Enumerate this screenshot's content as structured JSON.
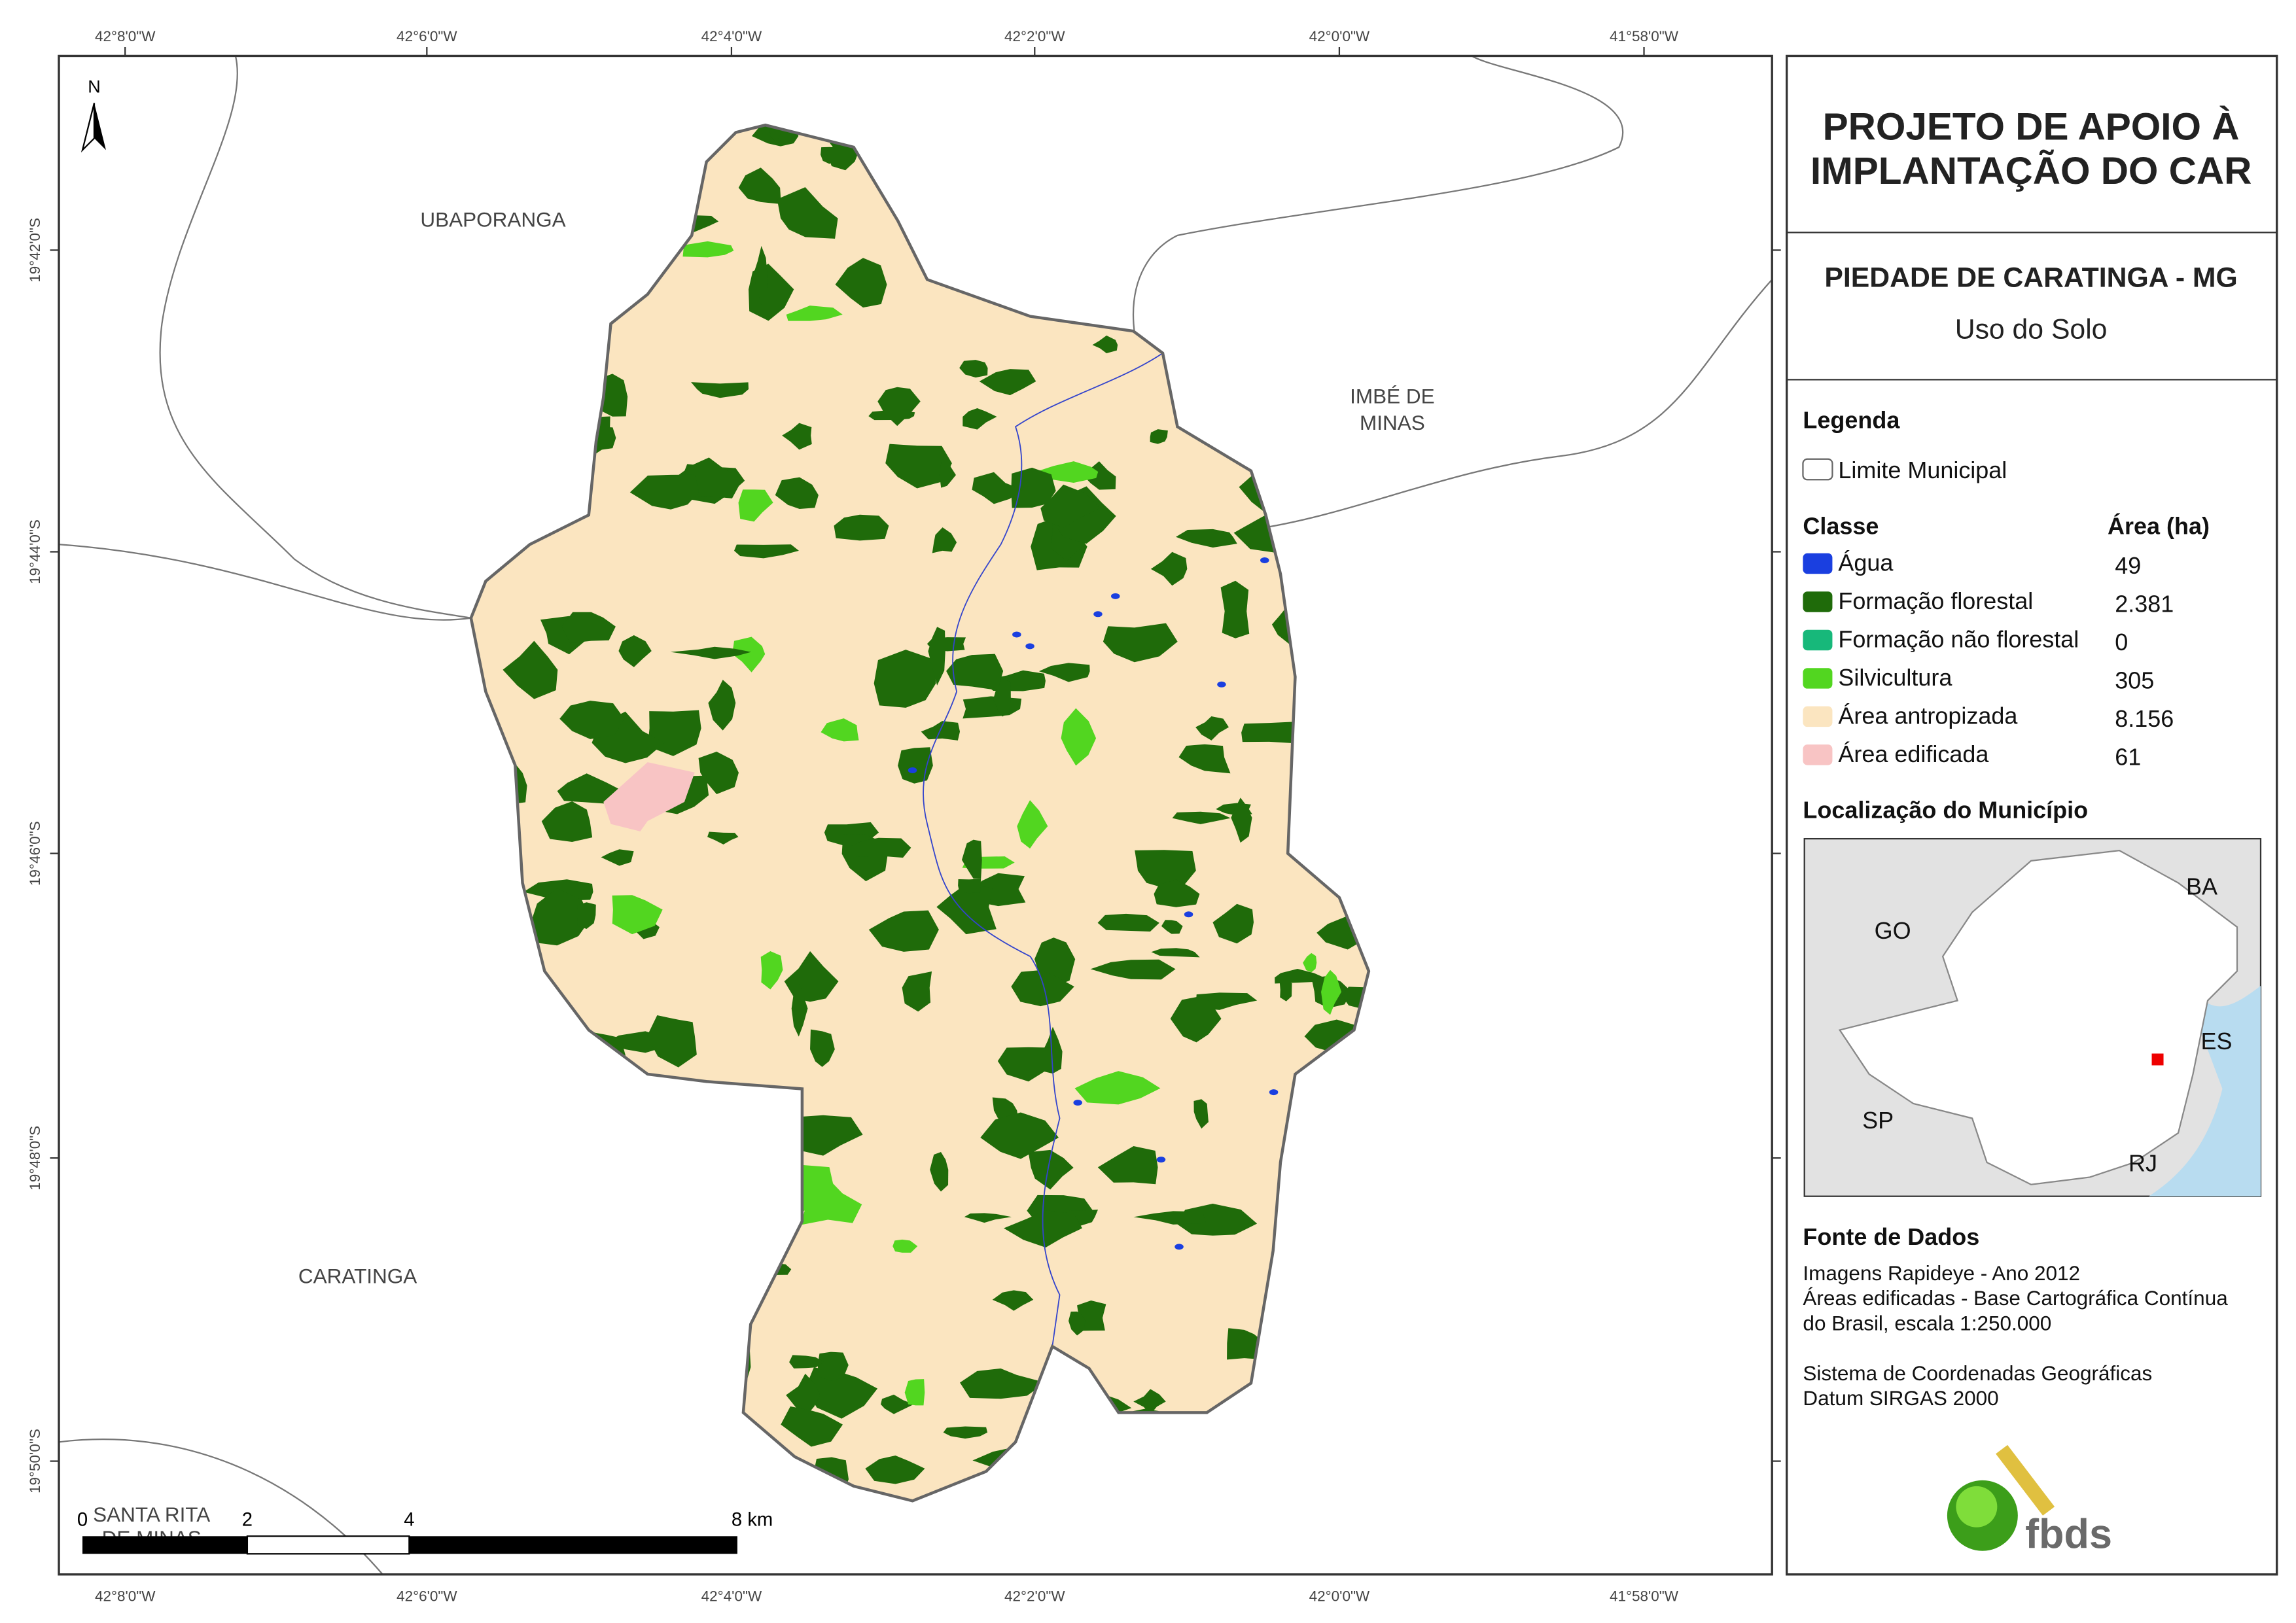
{
  "longitudes": [
    "42°8'0\"W",
    "42°6'0\"W",
    "42°4'0\"W",
    "42°2'0\"W",
    "42°0'0\"W",
    "41°58'0\"W"
  ],
  "latitudes": [
    "19°42'0\"S",
    "19°44'0\"S",
    "19°46'0\"S",
    "19°48'0\"S",
    "19°50'0\"S"
  ],
  "north": "N",
  "places": {
    "ubaporanga": "UBAPORANGA",
    "imbe": [
      "IMBÉ DE",
      "MINAS"
    ],
    "caratinga": "CARATINGA",
    "santa_rita": [
      "SANTA RITA",
      "DE MINAS"
    ]
  },
  "scale_bar": [
    "0",
    "2",
    "4",
    "8 km"
  ],
  "panel": {
    "title": [
      "PROJETO DE APOIO À",
      "IMPLANTAÇÃO DO CAR"
    ],
    "subtitle": "PIEDADE DE CARATINGA - MG",
    "theme": "Uso do Solo",
    "legend_title": "Legenda",
    "boundary": "Limite Municipal",
    "class_header": "Classe",
    "area_header": "Área (ha)",
    "classes": [
      {
        "name": "Água",
        "area": "49",
        "color": "#1a3fe0"
      },
      {
        "name": "Formação florestal",
        "area": "2.381",
        "color": "#1f6b0a"
      },
      {
        "name": "Formação não florestal",
        "area": "0",
        "color": "#17b87a"
      },
      {
        "name": "Silvicultura",
        "area": "305",
        "color": "#52d620"
      },
      {
        "name": "Área antropizada",
        "area": "8.156",
        "color": "#fbe5c0"
      },
      {
        "name": "Área edificada",
        "area": "61",
        "color": "#f8c4c4"
      }
    ],
    "location_title": "Localização do Município",
    "states": [
      "GO",
      "BA",
      "ES",
      "SP",
      "RJ"
    ],
    "sources_title": "Fonte de Dados",
    "sources": [
      "Imagens Rapideye - Ano 2012",
      "Áreas edificadas - Base Cartográfica Contínua",
      "do Brasil, escala 1:250.000"
    ],
    "crs": [
      "Sistema de Coordenadas Geográficas",
      "Datum SIRGAS 2000"
    ],
    "logo": "fbds"
  }
}
